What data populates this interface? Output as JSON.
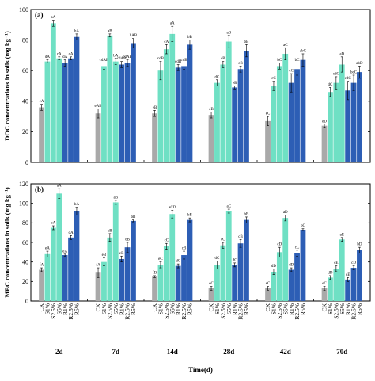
{
  "chart_data": {
    "x_title": "Time(d)",
    "groups": [
      "2d",
      "7d",
      "14d",
      "28d",
      "42d",
      "70d"
    ],
    "treatments": [
      "CK",
      "S1%",
      "S2.5%",
      "S5%",
      "R1%",
      "R2.5%",
      "R5%"
    ],
    "colors": {
      "CK": "#a9a9a9",
      "S1%": "#6fe0c4",
      "S2.5%": "#6fe0c4",
      "S5%": "#6fe0c4",
      "R1%": "#2d5eb5",
      "R2.5%": "#2d5eb5",
      "R5%": "#2d5eb5"
    },
    "panels": [
      {
        "label": "(a)",
        "type": "bar",
        "ylabel": "DOC concentrations in soils (mg kg⁻¹)",
        "ylim": [
          0,
          100
        ],
        "yticks": [
          0,
          20,
          40,
          60,
          80,
          100
        ],
        "series": [
          {
            "values": [
              36,
              66,
              91,
              68,
              65,
              68,
              82
            ],
            "errors": [
              2,
              1,
              2,
              1,
              2,
              1,
              2
            ],
            "labels": [
              "eA",
              "dA",
              "aA",
              "cA",
              "dA",
              "cA",
              "bA"
            ]
          },
          {
            "values": [
              32,
              63,
              83,
              66,
              64,
              65,
              78
            ],
            "errors": [
              3,
              2,
              1,
              2,
              2,
              2,
              3
            ],
            "labels": [
              "eAB",
              "cdAB",
              "aB",
              "bA",
              "cdAB",
              "cdAB",
              "bAB"
            ]
          },
          {
            "values": [
              32,
              60,
              74,
              84,
              62,
              63,
              77
            ],
            "errors": [
              2,
              6,
              3,
              5,
              2,
              2,
              3
            ],
            "labels": [
              "eB",
              "cdB",
              "cA",
              "aA",
              "cdB",
              "cdB",
              "bB"
            ]
          },
          {
            "values": [
              31,
              52,
              64,
              79,
              49,
              61,
              73
            ],
            "errors": [
              2,
              2,
              2,
              4,
              1,
              2,
              4
            ],
            "labels": [
              "eB",
              "dC",
              "cB",
              "aB",
              "eB",
              "cB",
              "bB"
            ]
          },
          {
            "values": [
              27,
              50,
              63,
              71,
              52,
              61,
              67
            ],
            "errors": [
              3,
              3,
              2,
              4,
              6,
              4,
              4
            ],
            "labels": [
              "eC",
              "cC",
              "bC",
              "aC",
              "cC",
              "bC",
              "abC"
            ]
          },
          {
            "values": [
              24,
              46,
              52,
              64,
              47,
              52,
              59
            ],
            "errors": [
              1,
              3,
              4,
              5,
              6,
              5,
              4
            ],
            "labels": [
              "eD",
              "dC",
              "cdC",
              "aD",
              "cdC",
              "bcC",
              "abD"
            ]
          }
        ]
      },
      {
        "label": "(b)",
        "type": "bar",
        "ylabel": "MBC concentrations in soils (mg kg⁻¹)",
        "ylim": [
          0,
          120
        ],
        "yticks": [
          0,
          20,
          40,
          60,
          80,
          100,
          120
        ],
        "series": [
          {
            "values": [
              32,
              48,
              75,
              110,
              47,
              65,
              92
            ],
            "errors": [
              2,
              3,
              2,
              5,
              1,
              2,
              4
            ],
            "labels": [
              "fA",
              "eA",
              "cA",
              "aA",
              "eA",
              "dA",
              "bA"
            ]
          },
          {
            "values": [
              29,
              40,
              65,
              101,
              43,
              55,
              82
            ],
            "errors": [
              5,
              4,
              4,
              2,
              3,
              5,
              1
            ],
            "labels": [
              "fA",
              "eB",
              "cB",
              "aB",
              "eB",
              "dB",
              "bB"
            ]
          },
          {
            "values": [
              25,
              37,
              56,
              89,
              36,
              47,
              83
            ],
            "errors": [
              1,
              3,
              3,
              4,
              2,
              4,
              2
            ],
            "labels": [
              "fB",
              "eC",
              "cC",
              "aCD",
              "dC",
              "cB",
              "bB"
            ]
          },
          {
            "values": [
              13,
              37,
              57,
              92,
              37,
              59,
              83
            ],
            "errors": [
              2,
              4,
              3,
              2,
              2,
              4,
              3
            ],
            "labels": [
              "eC",
              "dC",
              "cC",
              "aC",
              "dC",
              "cB",
              "bB"
            ]
          },
          {
            "values": [
              13,
              30,
              50,
              85,
              32,
              49,
              73
            ],
            "errors": [
              2,
              3,
              5,
              3,
              2,
              3,
              1
            ],
            "labels": [
              "eC",
              "dD",
              "cD",
              "aD",
              "dD",
              "cC",
              "bC"
            ]
          },
          {
            "values": [
              13,
              24,
              33,
              63,
              22,
              34,
              52
            ],
            "errors": [
              2,
              2,
              3,
              2,
              2,
              2,
              3
            ],
            "labels": [
              "eC",
              "dD",
              "cE",
              "aE",
              "dE",
              "cD",
              "bD"
            ]
          }
        ]
      }
    ]
  }
}
